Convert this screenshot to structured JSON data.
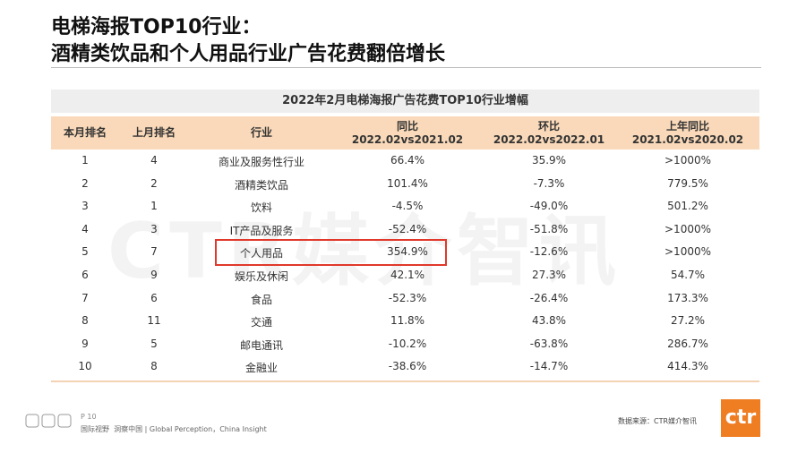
{
  "header": {
    "title_line1": "电梯海报TOP10行业：",
    "title_line2": "酒精类饮品和个人用品行业广告花费翻倍增长"
  },
  "watermark": "CTR媒介智讯",
  "table": {
    "title": "2022年2月电梯海报广告花费TOP10行业增幅",
    "columns": [
      [
        "本月排名"
      ],
      [
        "上月排名"
      ],
      [
        "行业"
      ],
      [
        "同比",
        "2022.02vs2021.02"
      ],
      [
        "环比",
        "2022.02vs2022.01"
      ],
      [
        "上年同比",
        "2021.02vs2020.02"
      ]
    ],
    "rows": [
      [
        "1",
        "4",
        "商业及服务性行业",
        "66.4%",
        "35.9%",
        ">1000%"
      ],
      [
        "2",
        "2",
        "酒精类饮品",
        "101.4%",
        "-7.3%",
        "779.5%"
      ],
      [
        "3",
        "1",
        "饮料",
        "-4.5%",
        "-49.0%",
        "501.2%"
      ],
      [
        "4",
        "3",
        "IT产品及服务",
        "-52.4%",
        "-51.8%",
        ">1000%"
      ],
      [
        "5",
        "7",
        "个人用品",
        "354.9%",
        "-12.6%",
        ">1000%"
      ],
      [
        "6",
        "9",
        "娱乐及休闲",
        "42.1%",
        "27.3%",
        "54.7%"
      ],
      [
        "7",
        "6",
        "食品",
        "-52.3%",
        "-26.4%",
        "173.3%"
      ],
      [
        "8",
        "11",
        "交通",
        "11.8%",
        "43.8%",
        "27.2%"
      ],
      [
        "9",
        "5",
        "邮电通讯",
        "-10.2%",
        "-63.8%",
        "286.7%"
      ],
      [
        "10",
        "8",
        "金融业",
        "-38.6%",
        "-14.7%",
        "414.3%"
      ]
    ]
  },
  "footer": {
    "page": "P 10",
    "slogan": "国际视野  洞察中国 | Global Perception，China Insight",
    "source": "数据来源：CTR媒介智讯",
    "logo": "ctr"
  }
}
